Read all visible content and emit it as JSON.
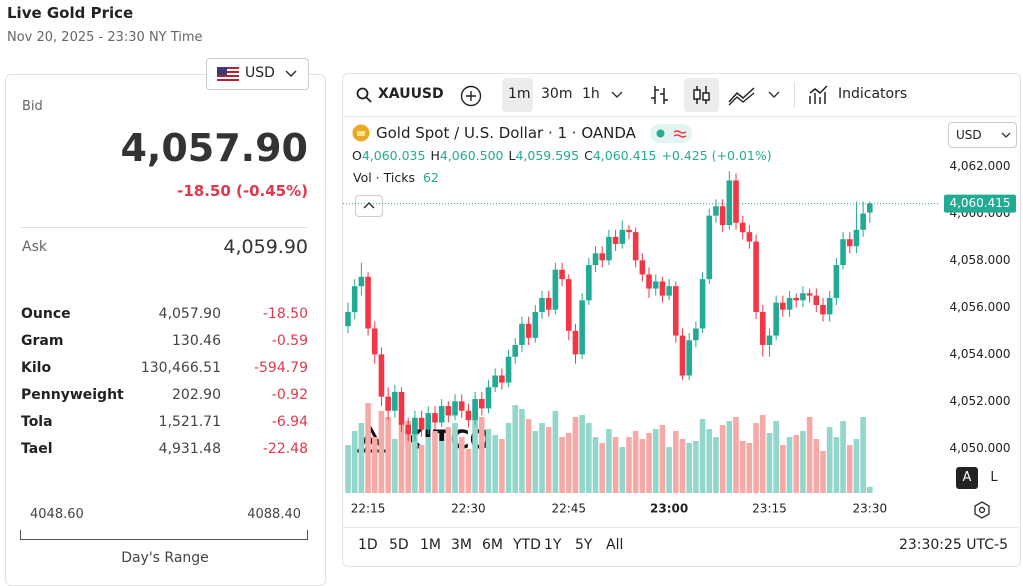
{
  "header": {
    "title": "Live Gold Price",
    "date": "Nov 20, 2025 - 23:30 NY Time"
  },
  "currency": "USD",
  "bid": {
    "label": "Bid",
    "price": "4,057.90",
    "change": "-18.50 (-0.45%)"
  },
  "ask": {
    "label": "Ask",
    "price": "4,059.90"
  },
  "table": {
    "rows": [
      [
        "Ounce",
        "4,057.90",
        "-18.50"
      ],
      [
        "Gram",
        "130.46",
        "-0.59"
      ],
      [
        "Kilo",
        "130,466.51",
        "-594.79"
      ],
      [
        "Pennyweight",
        "202.90",
        "-0.92"
      ],
      [
        "Tola",
        "1,521.71",
        "-6.94"
      ],
      [
        "Tael",
        "4,931.48",
        "-22.48"
      ]
    ]
  },
  "range": {
    "low": "4048.60",
    "high": "4088.40",
    "label": "Day's Range"
  },
  "toolbar": {
    "symbol": "XAUUSD",
    "intervals": [
      "1m",
      "30m",
      "1h"
    ],
    "indicators": "Indicators"
  },
  "bottom": {
    "ranges": [
      "1D",
      "5D",
      "1M",
      "3M",
      "6M",
      "YTD",
      "1Y",
      "5Y",
      "All"
    ],
    "clock": "23:30:25 UTC-5"
  },
  "chart_data": {
    "type": "candlestick",
    "title": "Gold Spot / U.S. Dollar · 1 · OANDA",
    "ohlc": [
      {
        "label": "O",
        "value": "4,060.035"
      },
      {
        "label": "H",
        "value": "4,060.500"
      },
      {
        "label": "L",
        "value": "4,059.595"
      },
      {
        "label": "C",
        "value": "4,060.415"
      }
    ],
    "change": "+0.425 (+0.01%)",
    "volume_label": "Vol · Ticks",
    "price_currency": "USD",
    "watermark": "KITCO",
    "scale_buttons": [
      "A",
      "L"
    ],
    "up_color": "#22ab94",
    "down_color": "#f23645",
    "volume_up_color": "#93d6cb",
    "volume_down_color": "#f6aaa8",
    "x": [
      "22:12",
      "22:13",
      "22:14",
      "22:15",
      "22:16",
      "22:17",
      "22:18",
      "22:19",
      "22:20",
      "22:21",
      "22:22",
      "22:23",
      "22:24",
      "22:25",
      "22:26",
      "22:27",
      "22:28",
      "22:29",
      "22:30",
      "22:31",
      "22:32",
      "22:33",
      "22:34",
      "22:35",
      "22:36",
      "22:37",
      "22:38",
      "22:39",
      "22:40",
      "22:41",
      "22:42",
      "22:43",
      "22:44",
      "22:45",
      "22:46",
      "22:47",
      "22:48",
      "22:49",
      "22:50",
      "22:51",
      "22:52",
      "22:53",
      "22:54",
      "22:55",
      "22:56",
      "22:57",
      "22:58",
      "22:59",
      "23:00",
      "23:01",
      "23:02",
      "23:03",
      "23:04",
      "23:05",
      "23:06",
      "23:07",
      "23:08",
      "23:09",
      "23:10",
      "23:11",
      "23:12",
      "23:13",
      "23:14",
      "23:15",
      "23:16",
      "23:17",
      "23:18",
      "23:19",
      "23:20",
      "23:21",
      "23:22",
      "23:23",
      "23:24",
      "23:25",
      "23:26",
      "23:27",
      "23:28",
      "23:29",
      "23:30"
    ],
    "xticks": [
      "22:15",
      "22:30",
      "22:45",
      "23:00",
      "23:15",
      "23:30"
    ],
    "open": [
      4055.2,
      4055.8,
      4056.9,
      4057.3,
      4055.1,
      4054.0,
      4052.2,
      4051.6,
      4052.4,
      4051.0,
      4050.6,
      4051.3,
      4050.8,
      4051.5,
      4051.1,
      4051.8,
      4051.4,
      4052.0,
      4051.6,
      4051.2,
      4052.1,
      4051.7,
      4052.6,
      4053.1,
      4052.8,
      4053.9,
      4054.4,
      4055.3,
      4054.7,
      4055.8,
      4056.4,
      4055.9,
      4057.6,
      4057.2,
      4055.0,
      4054.0,
      4056.3,
      4057.8,
      4058.3,
      4058.0,
      4059.0,
      4058.7,
      4059.3,
      4059.2,
      4058.0,
      4057.4,
      4056.8,
      4057.1,
      4056.5,
      4056.9,
      4054.8,
      4053.1,
      4054.6,
      4055.1,
      4057.2,
      4059.9,
      4060.3,
      4059.5,
      4061.4,
      4059.6,
      4059.2,
      4058.8,
      4055.8,
      4054.4,
      4054.8,
      4056.2,
      4055.9,
      4056.4,
      4056.3,
      4056.6,
      4056.5,
      4056.1,
      4055.7,
      4056.4,
      4057.8,
      4058.9,
      4058.6,
      4059.3,
      4060.035
    ],
    "high": [
      4056.2,
      4057.2,
      4057.9,
      4057.5,
      4055.4,
      4054.3,
      4052.6,
      4052.7,
      4052.6,
      4051.3,
      4051.6,
      4051.6,
      4051.8,
      4051.8,
      4052.1,
      4052.0,
      4052.3,
      4052.3,
      4051.9,
      4052.4,
      4052.4,
      4052.9,
      4053.4,
      4053.4,
      4054.2,
      4054.7,
      4055.6,
      4055.6,
      4056.1,
      4056.7,
      4056.7,
      4057.9,
      4057.9,
      4057.4,
      4055.3,
      4056.6,
      4058.1,
      4058.6,
      4058.6,
      4059.3,
      4059.3,
      4059.7,
      4059.5,
      4059.4,
      4058.3,
      4057.7,
      4057.4,
      4057.3,
      4057.2,
      4057.1,
      4055.1,
      4054.9,
      4055.4,
      4057.5,
      4060.2,
      4060.6,
      4060.6,
      4061.8,
      4061.7,
      4059.9,
      4059.5,
      4059.1,
      4056.1,
      4055.1,
      4056.5,
      4056.5,
      4056.7,
      4056.6,
      4056.9,
      4056.8,
      4056.8,
      4056.4,
      4056.7,
      4058.1,
      4059.2,
      4059.2,
      4060.5,
      4060.5,
      4060.5
    ],
    "low": [
      4054.9,
      4055.5,
      4056.5,
      4054.8,
      4053.6,
      4051.8,
      4051.2,
      4051.3,
      4050.7,
      4050.3,
      4050.3,
      4050.5,
      4050.6,
      4050.8,
      4050.9,
      4051.1,
      4051.2,
      4051.3,
      4050.9,
      4051.0,
      4051.4,
      4051.5,
      4052.4,
      4052.5,
      4052.6,
      4053.6,
      4054.1,
      4054.4,
      4054.5,
      4055.5,
      4055.6,
      4055.7,
      4056.9,
      4054.6,
      4053.6,
      4053.8,
      4056.1,
      4057.5,
      4057.7,
      4057.8,
      4058.4,
      4058.5,
      4058.9,
      4057.7,
      4057.1,
      4056.4,
      4056.5,
      4056.2,
      4056.3,
      4054.5,
      4052.9,
      4052.9,
      4054.3,
      4054.9,
      4057.0,
      4059.6,
      4059.2,
      4059.3,
      4059.3,
      4058.9,
      4058.5,
      4055.5,
      4053.9,
      4053.9,
      4054.6,
      4055.6,
      4055.6,
      4056.0,
      4056.0,
      4056.2,
      4055.8,
      4055.4,
      4055.4,
      4056.1,
      4057.6,
      4058.3,
      4058.3,
      4059.0,
      4059.595
    ],
    "close": [
      4055.8,
      4056.9,
      4057.3,
      4055.1,
      4054.0,
      4052.2,
      4051.6,
      4052.4,
      4051.0,
      4050.6,
      4051.3,
      4050.8,
      4051.5,
      4051.1,
      4051.8,
      4051.4,
      4052.0,
      4051.6,
      4051.2,
      4052.1,
      4051.7,
      4052.6,
      4053.1,
      4052.8,
      4053.9,
      4054.4,
      4055.3,
      4054.7,
      4055.8,
      4056.4,
      4055.9,
      4057.6,
      4057.2,
      4055.0,
      4054.0,
      4056.3,
      4057.8,
      4058.3,
      4058.0,
      4059.0,
      4058.7,
      4059.3,
      4059.2,
      4058.0,
      4057.4,
      4056.8,
      4057.1,
      4056.5,
      4056.9,
      4054.8,
      4053.1,
      4054.6,
      4055.1,
      4057.2,
      4059.9,
      4060.3,
      4059.5,
      4061.4,
      4059.6,
      4059.2,
      4058.8,
      4055.8,
      4054.4,
      4054.8,
      4056.2,
      4055.9,
      4056.4,
      4056.3,
      4056.6,
      4056.5,
      4056.1,
      4055.7,
      4056.4,
      4057.8,
      4058.9,
      4058.6,
      4059.3,
      4059.99,
      4060.415
    ],
    "volume": [
      480,
      620,
      700,
      900,
      560,
      820,
      760,
      540,
      680,
      720,
      600,
      480,
      560,
      620,
      520,
      660,
      700,
      560,
      440,
      860,
      760,
      640,
      580,
      540,
      700,
      880,
      840,
      740,
      620,
      700,
      660,
      820,
      560,
      600,
      760,
      780,
      700,
      560,
      500,
      640,
      560,
      460,
      560,
      620,
      540,
      600,
      640,
      680,
      460,
      620,
      540,
      500,
      520,
      740,
      640,
      560,
      680,
      720,
      760,
      520,
      500,
      700,
      780,
      600,
      720,
      480,
      560,
      580,
      620,
      760,
      540,
      420,
      660,
      560,
      720,
      480,
      540,
      760,
      62
    ],
    "volume_ylim": [
      0,
      1200
    ],
    "ylim": [
      4048.1,
      4064.1
    ],
    "yticks": [
      {
        "value": 4050,
        "label": "4,050.000"
      },
      {
        "value": 4052,
        "label": "4,052.000"
      },
      {
        "value": 4054,
        "label": "4,054.000"
      },
      {
        "value": 4056,
        "label": "4,056.000"
      },
      {
        "value": 4058,
        "label": "4,058.000"
      },
      {
        "value": 4060,
        "label": "4,060.000"
      },
      {
        "value": 4062,
        "label": "4,062.000"
      }
    ],
    "last_price": {
      "value": 4060.415,
      "label": "4,060.415"
    }
  }
}
